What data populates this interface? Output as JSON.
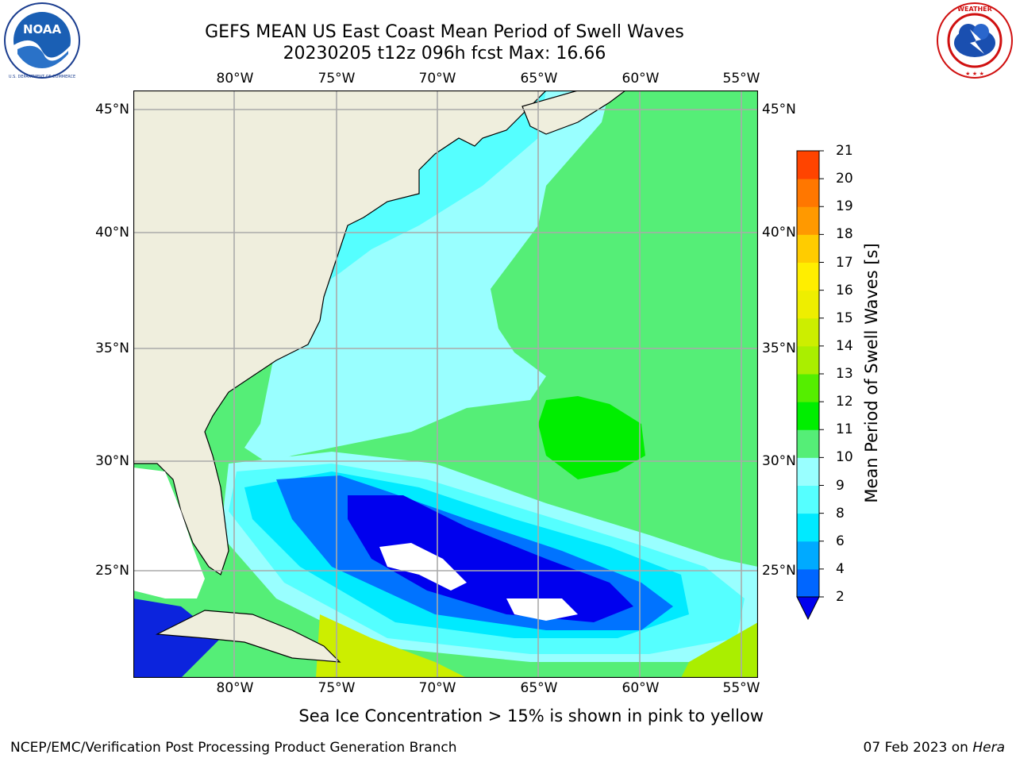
{
  "title": "GEFS MEAN US East Coast Mean Period of Swell Waves",
  "subtitle": "20230205 t12z 096h fcst   Max: 16.66",
  "longitude_labels": [
    "80°W",
    "75°W",
    "70°W",
    "65°W",
    "60°W",
    "55°W"
  ],
  "latitude_labels": [
    "45°N",
    "40°N",
    "35°N",
    "30°N",
    "25°N"
  ],
  "colorbar": {
    "label": "Mean Period of Swell Waves [s]",
    "ticks": [
      "2",
      "4",
      "6",
      "8",
      "9",
      "10",
      "11",
      "12",
      "13",
      "14",
      "15",
      "16",
      "17",
      "18",
      "19",
      "20",
      "21"
    ],
    "colors": [
      "#0066ff",
      "#00aaff",
      "#00eaff",
      "#55ffff",
      "#99ffff",
      "#55ee77",
      "#00ee00",
      "#55ee00",
      "#aaee00",
      "#ccee00",
      "#eeee00",
      "#ffee00",
      "#ffcc00",
      "#ff9900",
      "#ff7700",
      "#ff4400",
      "#ff1100",
      "#ee0000"
    ],
    "under_color": "#0000ee"
  },
  "ice_note": "Sea Ice Concentration > 15% is shown in pink to yellow",
  "footer_left": "NCEP/EMC/Verification Post Processing Product Generation Branch",
  "footer_date": "07 Feb 2023 on ",
  "footer_machine": "Hera",
  "logos": {
    "noaa": "NOAA",
    "nws": "NATIONAL WEATHER SERVICE"
  }
}
